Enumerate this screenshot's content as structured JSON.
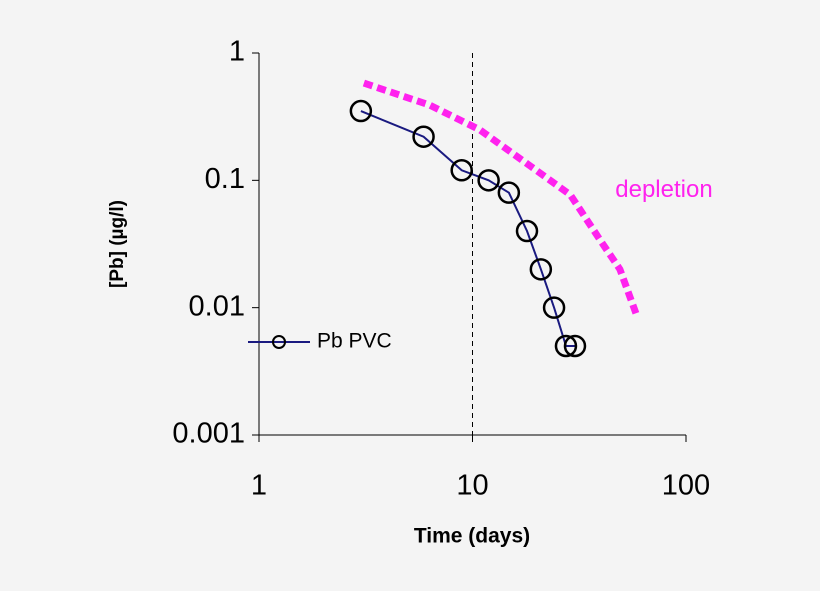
{
  "chart_data": {
    "type": "line",
    "xlabel": "Time (days)",
    "ylabel": "[Pb] (µg/l)",
    "xscale": "log",
    "yscale": "log",
    "xlim": [
      1,
      100
    ],
    "xticks": [
      1,
      10,
      100
    ],
    "ylim": [
      0.001,
      1
    ],
    "yticks": [
      1,
      0.1,
      0.01,
      0.001
    ],
    "vline": 10,
    "legend": "left",
    "series": [
      {
        "name": "Pb PVC",
        "color": "#1a1a80",
        "style": "solid",
        "marker": "circle",
        "legend": true,
        "x": [
          3.0,
          5.9,
          8.9,
          11.9,
          14.8,
          18,
          20.9,
          24.1,
          27.4,
          30.2
        ],
        "values": [
          0.35,
          0.22,
          0.12,
          0.1,
          0.08,
          0.04,
          0.02,
          0.01,
          0.005,
          0.005
        ]
      },
      {
        "name": "depletion",
        "color": "#ff22ee",
        "style": "dashed",
        "marker": "none",
        "legend": false,
        "x": [
          3.1,
          6.3,
          10.8,
          18.6,
          28.7,
          39.6,
          49,
          58.9
        ],
        "values": [
          0.58,
          0.39,
          0.25,
          0.13,
          0.077,
          0.034,
          0.02,
          0.0086
        ]
      }
    ]
  }
}
